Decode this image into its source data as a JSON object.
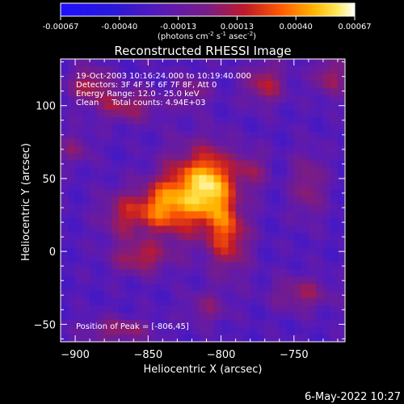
{
  "chart_data": {
    "type": "heatmap",
    "title": "Reconstructed RHESSI Image",
    "xlabel": "Heliocentric X (arcsec)",
    "ylabel": "Heliocentric Y (arcsec)",
    "xlim": [
      -910,
      -715
    ],
    "ylim": [
      -62,
      132
    ],
    "xticks": [
      -900,
      -850,
      -800,
      -750
    ],
    "yticks": [
      -50,
      0,
      50,
      100
    ],
    "colorbar": {
      "ticks": [
        "-0.00067",
        "-0.00040",
        "-0.00013",
        "0.00013",
        "0.00040",
        "0.00067"
      ],
      "unit_text": "(photons cm",
      "unit_exp1": "-2",
      "unit_mid": " s",
      "unit_exp2": "-1",
      "unit_mid2": " asec",
      "unit_exp3": "-2",
      "unit_close": ")"
    },
    "info_lines": [
      "19-Oct-2003 10:16:24.000 to 10:19:40.000",
      "Detectors: 3F 4F 5F 6F 7F 8F, Att 0",
      "Energy Range: 12.0 - 25.0 keV",
      "Clean     Total counts: 4.94E+03"
    ],
    "peak_text": "Position of Peak = [-806,45]",
    "peak": [
      -806,
      45
    ],
    "sources": [
      {
        "x": -806,
        "y": 45,
        "sx": 10,
        "sy": 18,
        "amp": 1.0
      },
      {
        "x": -826,
        "y": 38,
        "sx": 12,
        "sy": 20,
        "amp": 0.85
      },
      {
        "x": -843,
        "y": 30,
        "sx": 10,
        "sy": 12,
        "amp": 0.6
      },
      {
        "x": -865,
        "y": 25,
        "sx": 12,
        "sy": 12,
        "amp": 0.55
      },
      {
        "x": -855,
        "y": -5,
        "sx": 14,
        "sy": 8,
        "amp": 0.55
      },
      {
        "x": -795,
        "y": 10,
        "sx": 10,
        "sy": 18,
        "amp": 0.7
      },
      {
        "x": -780,
        "y": 55,
        "sx": 8,
        "sy": 10,
        "amp": 0.45
      },
      {
        "x": -865,
        "y": 100,
        "sx": 16,
        "sy": 8,
        "amp": 0.5
      },
      {
        "x": -890,
        "y": 115,
        "sx": 10,
        "sy": 8,
        "amp": 0.55
      },
      {
        "x": -820,
        "y": 110,
        "sx": 8,
        "sy": 8,
        "amp": 0.4
      },
      {
        "x": -770,
        "y": 115,
        "sx": 10,
        "sy": 10,
        "amp": 0.55
      },
      {
        "x": -725,
        "y": 120,
        "sx": 8,
        "sy": 10,
        "amp": 0.5
      },
      {
        "x": -740,
        "y": 45,
        "sx": 8,
        "sy": 16,
        "amp": 0.45
      },
      {
        "x": -745,
        "y": -30,
        "sx": 14,
        "sy": 8,
        "amp": 0.45
      },
      {
        "x": -870,
        "y": -55,
        "sx": 16,
        "sy": 6,
        "amp": 0.45
      },
      {
        "x": -900,
        "y": 70,
        "sx": 8,
        "sy": 8,
        "amp": 0.35
      },
      {
        "x": -810,
        "y": -40,
        "sx": 10,
        "sy": 8,
        "amp": 0.35
      }
    ],
    "background": -0.35
  },
  "footer": {
    "date": "6-May-2022 10:27"
  }
}
